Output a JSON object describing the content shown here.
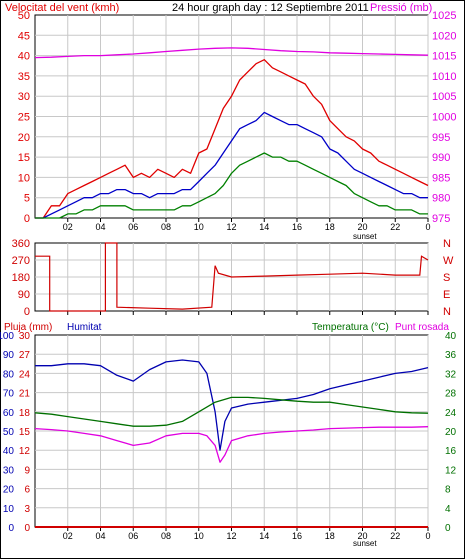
{
  "colors": {
    "gust": "#e00000",
    "wind": "#0000c8",
    "wind_min": "#008000",
    "pressure": "#e000e0",
    "direction": "#d00000",
    "humidity": "#0000b0",
    "temperature": "#007000",
    "dewpoint": "#e000e0",
    "rain": "#d00000",
    "grid": "#c8c8c8"
  },
  "header": {
    "wind_label": "Velocitat del vent (kmh)",
    "title": "24 hour graph day : 12 Septiembre 2011",
    "pressure_label": "Pressió (mb)"
  },
  "bottom_header": {
    "rain_label": "Pluja (mm)",
    "humidity_label": "Humitat",
    "temp_label": "Temperatura (°C)",
    "dew_label": "Punt rosada"
  },
  "direction_letters": [
    "N",
    "W",
    "S",
    "E",
    "N"
  ],
  "sunset_label": "sunset",
  "chart_data": [
    {
      "type": "line",
      "title": "24 hour graph day : 12 Septiembre 2011",
      "x_unit": "hour",
      "xlim": [
        0,
        24
      ],
      "x_ticks": [
        "02",
        "04",
        "06",
        "08",
        "10",
        "12",
        "14",
        "16",
        "18",
        "20",
        "22",
        "0"
      ],
      "y_left": {
        "label": "Velocitat del vent (kmh)",
        "lim": [
          0,
          50
        ],
        "ticks": [
          0,
          5,
          10,
          15,
          20,
          25,
          30,
          35,
          40,
          45,
          50
        ]
      },
      "y_right": {
        "label": "Pressió (mb)",
        "lim": [
          975,
          1025
        ],
        "ticks": [
          975,
          980,
          985,
          990,
          995,
          1000,
          1005,
          1010,
          1015,
          1020,
          1025
        ]
      },
      "series": [
        {
          "key": "gust",
          "axis": "left",
          "x": [
            0,
            0.5,
            1,
            1.5,
            2,
            2.5,
            3,
            3.5,
            4,
            4.5,
            5,
            5.5,
            6,
            6.5,
            7,
            7.5,
            8,
            8.5,
            9,
            9.5,
            10,
            10.5,
            11,
            11.5,
            12,
            12.5,
            13,
            13.5,
            14,
            14.5,
            15,
            15.5,
            16,
            16.5,
            17,
            17.5,
            18,
            18.5,
            19,
            19.5,
            20,
            20.5,
            21,
            21.5,
            22,
            22.5,
            23,
            23.5,
            24
          ],
          "values": [
            0,
            0,
            3,
            3,
            6,
            7,
            8,
            9,
            10,
            11,
            12,
            13,
            10,
            11,
            10,
            12,
            11,
            10,
            12,
            11,
            16,
            17,
            22,
            27,
            30,
            34,
            36,
            38,
            39,
            37,
            36,
            35,
            34,
            33,
            30,
            28,
            24,
            22,
            20,
            19,
            17,
            16,
            14,
            13,
            12,
            11,
            10,
            9,
            8
          ]
        },
        {
          "key": "wind",
          "axis": "left",
          "x": [
            0,
            0.5,
            1,
            1.5,
            2,
            2.5,
            3,
            3.5,
            4,
            4.5,
            5,
            5.5,
            6,
            6.5,
            7,
            7.5,
            8,
            8.5,
            9,
            9.5,
            10,
            10.5,
            11,
            11.5,
            12,
            12.5,
            13,
            13.5,
            14,
            14.5,
            15,
            15.5,
            16,
            16.5,
            17,
            17.5,
            18,
            18.5,
            19,
            19.5,
            20,
            20.5,
            21,
            21.5,
            22,
            22.5,
            23,
            23.5,
            24
          ],
          "values": [
            0,
            0,
            1,
            2,
            3,
            4,
            5,
            5,
            6,
            6,
            7,
            7,
            6,
            6,
            5,
            6,
            6,
            6,
            7,
            7,
            9,
            11,
            13,
            16,
            19,
            22,
            23,
            24,
            26,
            25,
            24,
            23,
            23,
            22,
            21,
            20,
            17,
            16,
            14,
            12,
            11,
            10,
            9,
            8,
            7,
            6,
            6,
            5,
            5
          ]
        },
        {
          "key": "wind_min",
          "axis": "left",
          "x": [
            0,
            0.5,
            1,
            1.5,
            2,
            2.5,
            3,
            3.5,
            4,
            4.5,
            5,
            5.5,
            6,
            6.5,
            7,
            7.5,
            8,
            8.5,
            9,
            9.5,
            10,
            10.5,
            11,
            11.5,
            12,
            12.5,
            13,
            13.5,
            14,
            14.5,
            15,
            15.5,
            16,
            16.5,
            17,
            17.5,
            18,
            18.5,
            19,
            19.5,
            20,
            20.5,
            21,
            21.5,
            22,
            22.5,
            23,
            23.5,
            24
          ],
          "values": [
            0,
            0,
            0,
            0,
            1,
            1,
            2,
            2,
            3,
            3,
            3,
            3,
            2,
            2,
            2,
            2,
            2,
            2,
            3,
            3,
            4,
            5,
            6,
            8,
            11,
            13,
            14,
            15,
            16,
            15,
            15,
            14,
            14,
            13,
            12,
            11,
            10,
            9,
            8,
            6,
            5,
            4,
            3,
            3,
            2,
            2,
            2,
            1,
            1
          ]
        },
        {
          "key": "pressure",
          "axis": "right",
          "x": [
            0,
            1,
            2,
            3,
            4,
            5,
            6,
            7,
            8,
            9,
            10,
            11,
            12,
            13,
            14,
            15,
            16,
            17,
            18,
            19,
            20,
            21,
            22,
            23,
            24
          ],
          "values": [
            1014.5,
            1014.6,
            1014.8,
            1015,
            1015,
            1015.2,
            1015.4,
            1015.7,
            1016,
            1016.3,
            1016.6,
            1016.8,
            1016.9,
            1016.8,
            1016.5,
            1016.2,
            1016,
            1015.9,
            1015.7,
            1015.6,
            1015.5,
            1015.4,
            1015.3,
            1015.2,
            1015.1
          ]
        }
      ]
    },
    {
      "type": "line",
      "xlim": [
        0,
        24
      ],
      "y_left": {
        "lim": [
          0,
          360
        ],
        "ticks": [
          0,
          90,
          180,
          270,
          360
        ]
      },
      "y_right_labels": [
        "N",
        "W",
        "S",
        "E",
        "N"
      ],
      "series": [
        {
          "key": "direction",
          "x": [
            0,
            0.9,
            0.9,
            4.3,
            4.3,
            4.8,
            5.0,
            5.0,
            7,
            9,
            10.8,
            11.0,
            11.2,
            12,
            14,
            16,
            18,
            20,
            22,
            23.5,
            23.6,
            24
          ],
          "values": [
            290,
            290,
            0,
            0,
            360,
            360,
            360,
            20,
            15,
            10,
            20,
            240,
            200,
            180,
            185,
            190,
            195,
            200,
            190,
            190,
            290,
            270
          ]
        }
      ]
    },
    {
      "type": "line",
      "xlim": [
        0,
        24
      ],
      "x_ticks": [
        "02",
        "04",
        "06",
        "08",
        "10",
        "12",
        "14",
        "16",
        "18",
        "20",
        "22",
        "0"
      ],
      "y_left_rain": {
        "label": "Pluja (mm)",
        "lim": [
          0,
          30
        ],
        "ticks": [
          0,
          3,
          6,
          9,
          12,
          15,
          18,
          21,
          24,
          27,
          30
        ]
      },
      "y_left_humidity": {
        "label": "Humitat",
        "lim": [
          0,
          100
        ],
        "ticks": [
          0,
          10,
          20,
          30,
          40,
          50,
          60,
          70,
          80,
          90,
          100
        ]
      },
      "y_right": {
        "label": "Temperatura (°C)",
        "lim": [
          0,
          40
        ],
        "ticks": [
          0,
          4,
          8,
          12,
          16,
          20,
          24,
          28,
          32,
          36,
          40
        ]
      },
      "series": [
        {
          "key": "humidity",
          "axis": "humidity",
          "x": [
            0,
            1,
            2,
            3,
            4,
            5,
            6,
            7,
            8,
            9,
            10,
            10.5,
            11,
            11.3,
            11.6,
            12,
            13,
            14,
            15,
            16,
            17,
            18,
            19,
            20,
            21,
            22,
            23,
            24
          ],
          "values": [
            84,
            84,
            85,
            85,
            84,
            79,
            76,
            82,
            86,
            87,
            86,
            80,
            60,
            40,
            55,
            62,
            64,
            65,
            66,
            67,
            69,
            72,
            74,
            76,
            78,
            80,
            81,
            83
          ]
        },
        {
          "key": "temperature",
          "axis": "right",
          "x": [
            0,
            1,
            2,
            3,
            4,
            5,
            6,
            7,
            8,
            9,
            10,
            11,
            12,
            13,
            14,
            15,
            16,
            17,
            18,
            19,
            20,
            21,
            22,
            23,
            24
          ],
          "values": [
            23.8,
            23.5,
            23,
            22.5,
            22,
            21.5,
            21,
            21,
            21.2,
            22,
            24,
            26,
            27,
            27,
            26.8,
            26.5,
            26.2,
            26,
            26,
            25.5,
            25,
            24.5,
            24,
            23.8,
            23.7
          ]
        },
        {
          "key": "dewpoint",
          "axis": "right",
          "x": [
            0,
            1,
            2,
            3,
            4,
            5,
            6,
            7,
            8,
            9,
            10,
            10.5,
            11,
            11.3,
            11.6,
            12,
            13,
            14,
            15,
            16,
            17,
            18,
            19,
            20,
            21,
            22,
            23,
            24
          ],
          "values": [
            20.5,
            20.3,
            20,
            19.5,
            19,
            18,
            17,
            17.5,
            19,
            19.5,
            19.5,
            19,
            17,
            13.5,
            15,
            18,
            19,
            19.5,
            19.8,
            20,
            20.2,
            20.5,
            20.6,
            20.7,
            20.8,
            20.8,
            20.8,
            20.9
          ]
        },
        {
          "key": "rain",
          "axis": "rain",
          "x": [
            0,
            24
          ],
          "values": [
            0,
            0
          ]
        }
      ]
    }
  ]
}
